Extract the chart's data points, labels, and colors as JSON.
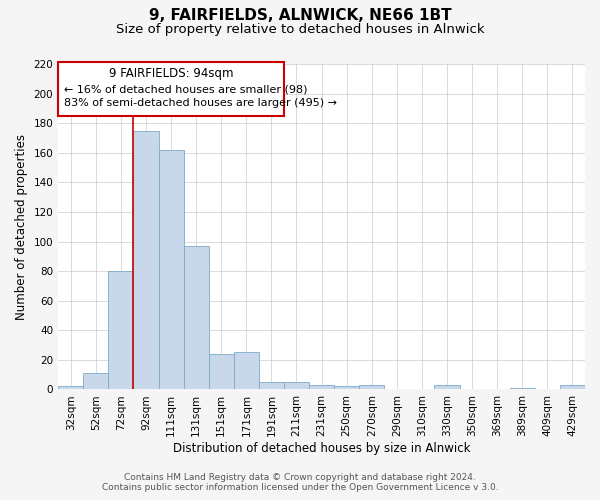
{
  "title": "9, FAIRFIELDS, ALNWICK, NE66 1BT",
  "subtitle": "Size of property relative to detached houses in Alnwick",
  "xlabel": "Distribution of detached houses by size in Alnwick",
  "ylabel": "Number of detached properties",
  "categories": [
    "32sqm",
    "52sqm",
    "72sqm",
    "92sqm",
    "111sqm",
    "131sqm",
    "151sqm",
    "171sqm",
    "191sqm",
    "211sqm",
    "231sqm",
    "250sqm",
    "270sqm",
    "290sqm",
    "310sqm",
    "330sqm",
    "350sqm",
    "369sqm",
    "389sqm",
    "409sqm",
    "429sqm"
  ],
  "values": [
    2,
    11,
    80,
    175,
    162,
    97,
    24,
    25,
    5,
    5,
    3,
    2,
    3,
    0,
    0,
    3,
    0,
    0,
    1,
    0,
    3
  ],
  "bar_color": "#c8d8ea",
  "bar_edge_color": "#7aaac8",
  "ylim": [
    0,
    220
  ],
  "yticks": [
    0,
    20,
    40,
    60,
    80,
    100,
    120,
    140,
    160,
    180,
    200,
    220
  ],
  "marker_idx": 3,
  "marker_label": "9 FAIRFIELDS: 94sqm",
  "annotation_line1": "← 16% of detached houses are smaller (98)",
  "annotation_line2": "83% of semi-detached houses are larger (495) →",
  "annotation_box_color": "#ffffff",
  "annotation_box_edge_color": "#cc0000",
  "marker_line_color": "#cc0000",
  "footer_line1": "Contains HM Land Registry data © Crown copyright and database right 2024.",
  "footer_line2": "Contains public sector information licensed under the Open Government Licence v 3.0.",
  "background_color": "#f5f5f5",
  "plot_background_color": "#ffffff",
  "title_fontsize": 11,
  "subtitle_fontsize": 9.5,
  "axis_label_fontsize": 8.5,
  "tick_fontsize": 7.5,
  "footer_fontsize": 6.5,
  "annotation_fontsize": 8,
  "annotation_title_fontsize": 8.5
}
